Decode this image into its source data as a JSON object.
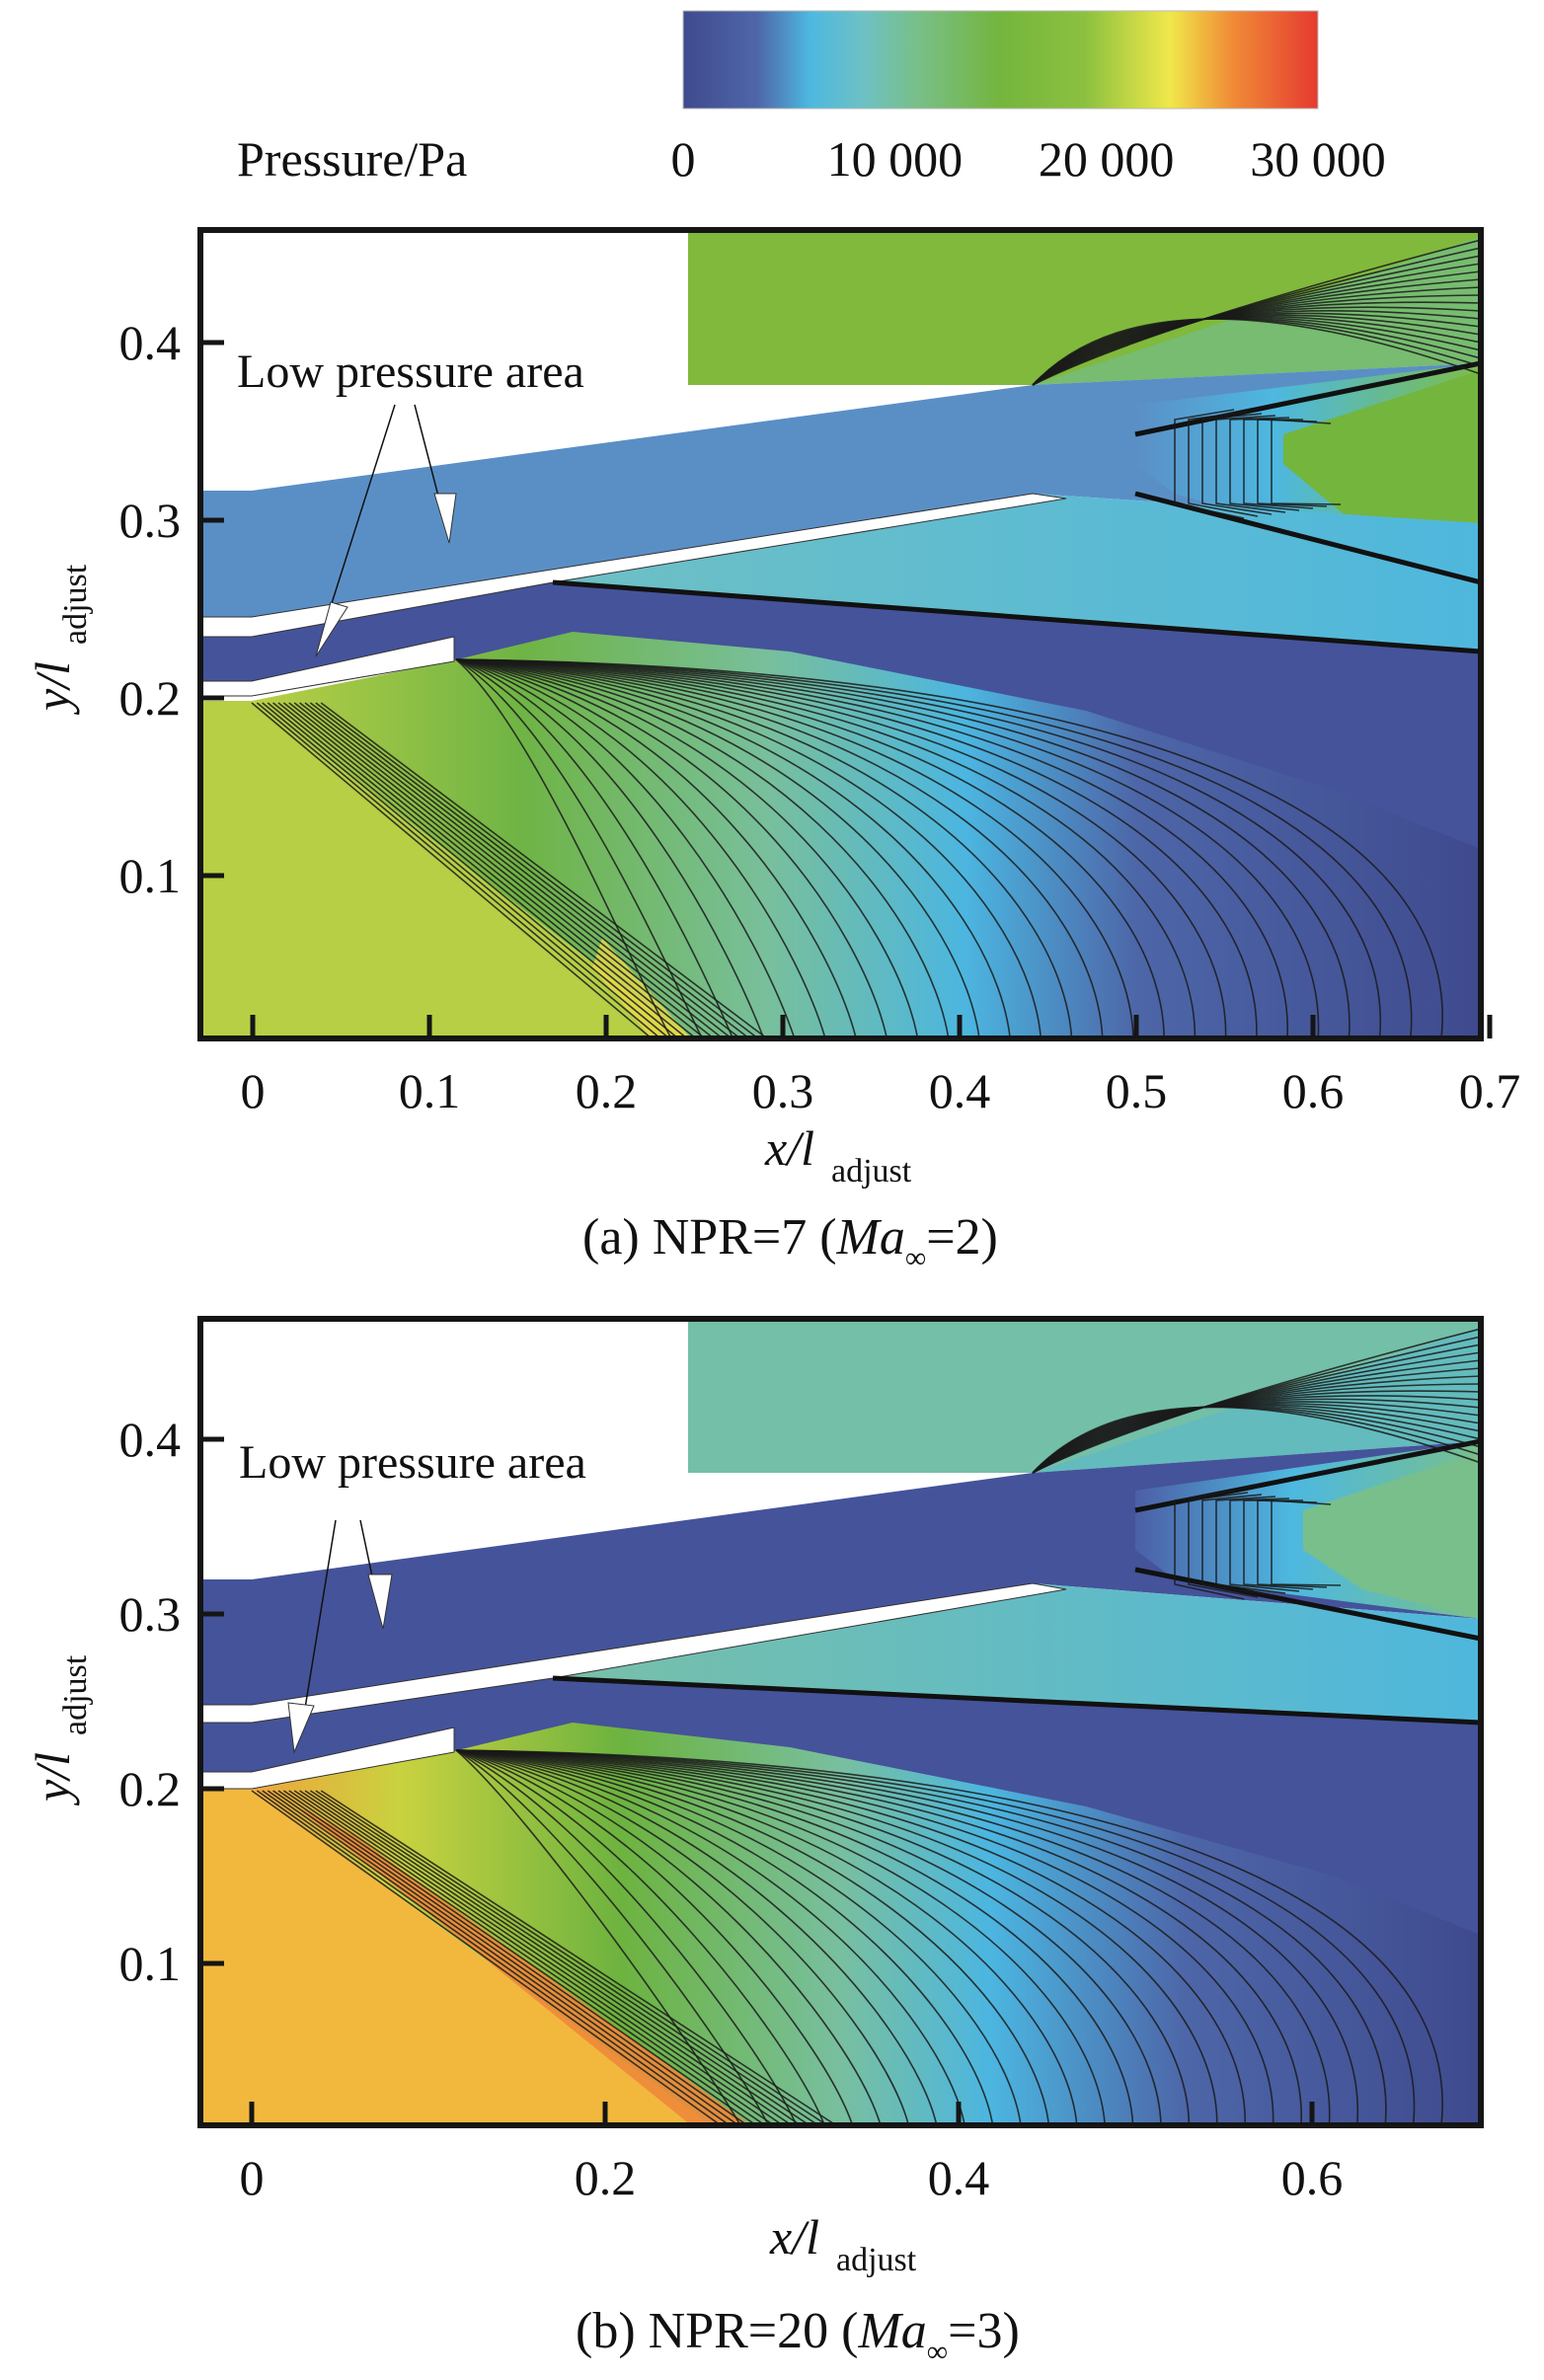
{
  "colorbar": {
    "label": "Pressure/Pa",
    "min": 0,
    "max": 30000,
    "ticks": [
      {
        "value": 0,
        "label": "0"
      },
      {
        "value": 10000,
        "label": "10 000"
      },
      {
        "value": 20000,
        "label": "20 000"
      },
      {
        "value": 30000,
        "label": "30 000"
      }
    ],
    "stops": [
      {
        "value": 0,
        "color": "#3f4a8e"
      },
      {
        "value": 3500,
        "color": "#4e66a8"
      },
      {
        "value": 6000,
        "color": "#4db8e0"
      },
      {
        "value": 8500,
        "color": "#6dc1c4"
      },
      {
        "value": 11000,
        "color": "#78bf8a"
      },
      {
        "value": 15000,
        "color": "#74b53d"
      },
      {
        "value": 19000,
        "color": "#8cc140"
      },
      {
        "value": 23000,
        "color": "#f0e84a"
      },
      {
        "value": 26000,
        "color": "#f08a36"
      },
      {
        "value": 30000,
        "color": "#e53a30"
      }
    ]
  },
  "chart_data": [
    {
      "type": "heatmap",
      "title": "(a) NPR=7 (Ma∞=2)",
      "caption_parts": {
        "prefix": "(a) NPR=7 (",
        "ma": "Ma",
        "sub": "∞",
        "suffix": "=2)"
      },
      "xlabel": {
        "main": "x/l",
        "sub": "adjust"
      },
      "ylabel": {
        "main": "y/l",
        "sub": "adjust"
      },
      "xlim": [
        -0.03,
        0.695
      ],
      "ylim": [
        0.008,
        0.463
      ],
      "xticks": [
        {
          "value": 0,
          "label": "0"
        },
        {
          "value": 0.1,
          "label": "0.1"
        },
        {
          "value": 0.2,
          "label": "0.2"
        },
        {
          "value": 0.3,
          "label": "0.3"
        },
        {
          "value": 0.4,
          "label": "0.4"
        },
        {
          "value": 0.5,
          "label": "0.5"
        },
        {
          "value": 0.6,
          "label": "0.6"
        },
        {
          "value": 0.7,
          "label": "0.7"
        }
      ],
      "yticks": [
        {
          "value": 0.1,
          "label": "0.1"
        },
        {
          "value": 0.2,
          "label": "0.2"
        },
        {
          "value": 0.3,
          "label": "0.3"
        },
        {
          "value": 0.4,
          "label": "0.4"
        }
      ],
      "annotation": {
        "text": "Low pressure area",
        "arrows": 2
      },
      "regions": {
        "freestream_upper_pa": 16500,
        "upper_channel_pa": 4500,
        "lower_channel_pa": 1500,
        "external_ramp_pa": 20500,
        "peak_near_wall_pa": 24000
      }
    },
    {
      "type": "heatmap",
      "title": "(b) NPR=20 (Ma∞=3)",
      "caption_parts": {
        "prefix": "(b) NPR=20 (",
        "ma": "Ma",
        "sub": "∞",
        "suffix": "=3)"
      },
      "xlabel": {
        "main": "x/l",
        "sub": "adjust"
      },
      "ylabel": {
        "main": "y/l",
        "sub": "adjust"
      },
      "xlim": [
        -0.03,
        0.695
      ],
      "ylim": [
        0.007,
        0.469
      ],
      "xticks": [
        {
          "value": 0,
          "label": "0"
        },
        {
          "value": 0.2,
          "label": "0.2"
        },
        {
          "value": 0.4,
          "label": "0.4"
        },
        {
          "value": 0.6,
          "label": "0.6"
        }
      ],
      "yticks": [
        {
          "value": 0.1,
          "label": "0.1"
        },
        {
          "value": 0.2,
          "label": "0.2"
        },
        {
          "value": 0.3,
          "label": "0.3"
        },
        {
          "value": 0.4,
          "label": "0.4"
        }
      ],
      "annotation": {
        "text": "Low pressure area",
        "arrows": 2
      },
      "regions": {
        "freestream_upper_pa": 9500,
        "upper_channel_pa": 1500,
        "lower_channel_pa": 1500,
        "external_ramp_pa": 24500,
        "peak_near_wall_pa": 28000
      }
    }
  ]
}
